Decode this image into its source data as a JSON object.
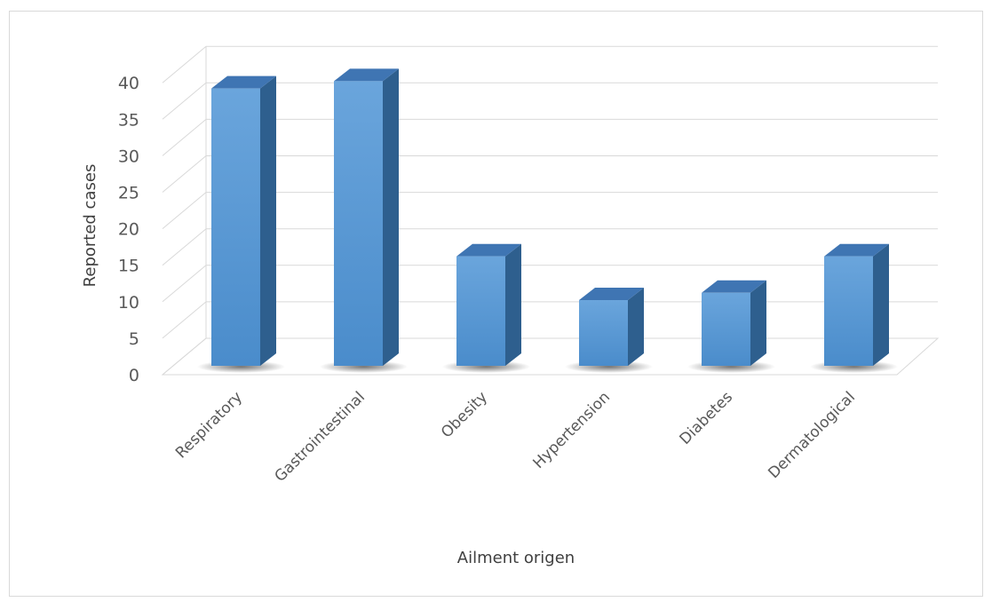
{
  "chart_data": {
    "type": "bar",
    "style": "3d-column",
    "title": "",
    "xlabel": "Ailment origen",
    "ylabel": "Reported cases",
    "categories": [
      "Respiratory",
      "Gastrointestinal",
      "Obesity",
      "Hypertension",
      "Diabetes",
      "Dermatological"
    ],
    "values": [
      38,
      39,
      15,
      9,
      10,
      15
    ],
    "ylim": [
      0,
      40
    ],
    "yticks": [
      "0",
      "5",
      "10",
      "15",
      "20",
      "25",
      "30",
      "35",
      "40"
    ],
    "grid": true,
    "legend": "none",
    "colors": {
      "bar_front": "#5b9bd5",
      "bar_side": "#2e5f8e",
      "bar_top": "#3f75b3",
      "gridline": "#d9d9d9",
      "text": "#595959"
    }
  }
}
